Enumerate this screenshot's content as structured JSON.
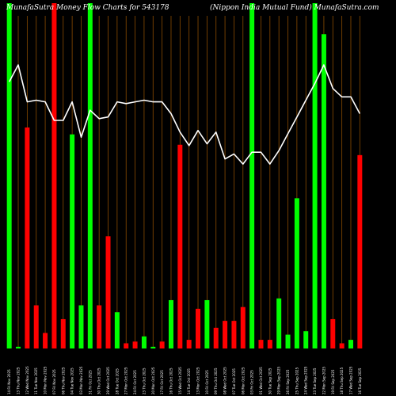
{
  "chart_data": {
    "type": "bar",
    "title_left": "MunafaSutra  Money Flow  Charts for 543178",
    "title_right": "(Nippon  India  Mutual Fund) MunafaSutra.com",
    "ylim": [
      0,
      100
    ],
    "colors": {
      "up": "#00ff00",
      "down": "#ff0000",
      "line": "#ffffff",
      "grid": "#8a4b00",
      "background": "#000000"
    },
    "bars": [
      {
        "label": "14 Fri Nov 2025",
        "value": 100,
        "dir": "up"
      },
      {
        "label": "13 Thu Nov 2025",
        "value": 0.5,
        "dir": "up"
      },
      {
        "label": "12 Wed Nov 2025",
        "value": 64,
        "dir": "down"
      },
      {
        "label": "11 Tue Nov 2025",
        "value": 12.5,
        "dir": "down"
      },
      {
        "label": "10 Mon Nov 2025",
        "value": 4.5,
        "dir": "down"
      },
      {
        "label": "07 Fri Nov 2025",
        "value": 100,
        "dir": "down"
      },
      {
        "label": "06 Thu Nov 2025",
        "value": 8.5,
        "dir": "down"
      },
      {
        "label": "04 Tue Nov 2025",
        "value": 62,
        "dir": "up"
      },
      {
        "label": "03 Mon Nov 2025",
        "value": 12.5,
        "dir": "up"
      },
      {
        "label": "31 Fri Oct 2025",
        "value": 100,
        "dir": "up"
      },
      {
        "label": "30 Thu Oct 2025",
        "value": 12.5,
        "dir": "down"
      },
      {
        "label": "29 Wed Oct 2025",
        "value": 32.5,
        "dir": "down"
      },
      {
        "label": "28 Tue Oct 2025",
        "value": 10.5,
        "dir": "up"
      },
      {
        "label": "27 Mon Oct 2025",
        "value": 1.5,
        "dir": "down"
      },
      {
        "label": "24 Fri Oct 2025",
        "value": 2,
        "dir": "down"
      },
      {
        "label": "23 Thu Oct 2025",
        "value": 3.5,
        "dir": "up"
      },
      {
        "label": "20 Mon Oct 2025",
        "value": 0.5,
        "dir": "up"
      },
      {
        "label": "17 Fri Oct 2025",
        "value": 2,
        "dir": "down"
      },
      {
        "label": "16 Thu Oct 2025",
        "value": 14,
        "dir": "up"
      },
      {
        "label": "15 Wed Oct 2025",
        "value": 59,
        "dir": "down"
      },
      {
        "label": "14 Tue Oct 2025",
        "value": 2.5,
        "dir": "down"
      },
      {
        "label": "13 Mon Oct 2025",
        "value": 11.5,
        "dir": "down"
      },
      {
        "label": "10 Fri Oct 2025",
        "value": 14,
        "dir": "up"
      },
      {
        "label": "09 Thu Oct 2025",
        "value": 6,
        "dir": "down"
      },
      {
        "label": "08 Wed Oct 2025",
        "value": 8,
        "dir": "down"
      },
      {
        "label": "07 Tue Oct 2025",
        "value": 8,
        "dir": "down"
      },
      {
        "label": "06 Mon Oct 2025",
        "value": 12,
        "dir": "down"
      },
      {
        "label": "03 Fri Oct 2025",
        "value": 100,
        "dir": "up"
      },
      {
        "label": "01 Wed Oct 2025",
        "value": 2.5,
        "dir": "down"
      },
      {
        "label": "30 Tue Sep 2025",
        "value": 2.5,
        "dir": "down"
      },
      {
        "label": "29 Mon Sep 2025",
        "value": 14.5,
        "dir": "up"
      },
      {
        "label": "26 Fri Sep 2025",
        "value": 4,
        "dir": "up"
      },
      {
        "label": "25 Thu Sep 2025",
        "value": 43.5,
        "dir": "up"
      },
      {
        "label": "24 Wed Sep 2025",
        "value": 5,
        "dir": "up"
      },
      {
        "label": "23 Tue Sep 2025",
        "value": 100,
        "dir": "up"
      },
      {
        "label": "22 Mon Sep 2025",
        "value": 91,
        "dir": "up"
      },
      {
        "label": "19 Fri Sep 2025",
        "value": 8.5,
        "dir": "down"
      },
      {
        "label": "18 Thu Sep 2025",
        "value": 1.5,
        "dir": "down"
      },
      {
        "label": "17 Wed Sep 2025",
        "value": 2.5,
        "dir": "up"
      },
      {
        "label": "16 Tue Sep 2025",
        "value": 56,
        "dir": "down"
      }
    ],
    "price_line": [
      90,
      100,
      78,
      79,
      78,
      67,
      67,
      78,
      57,
      73,
      68,
      69,
      78,
      77,
      78,
      79,
      78,
      78,
      71,
      60,
      52,
      61,
      53,
      60,
      44,
      47,
      41,
      48,
      48,
      41,
      49,
      59,
      69,
      79,
      89,
      100,
      86,
      81,
      81,
      71
    ]
  }
}
